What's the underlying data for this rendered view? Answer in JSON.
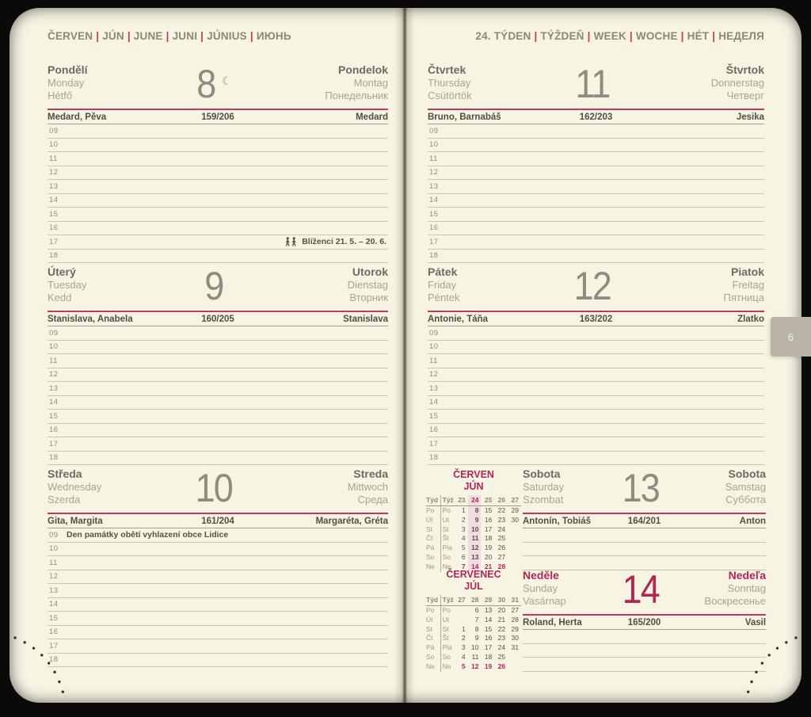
{
  "header": {
    "month_segments": [
      "ČERVEN",
      "JÚN",
      "JUNE",
      "JUNI",
      "JÚNIUS",
      "ИЮНЬ"
    ],
    "week_segments": [
      "24. TÝDEN",
      "TÝŽDEŇ",
      "WEEK",
      "WOCHE",
      "HÉT",
      "НЕДЕЛЯ"
    ]
  },
  "page_tab": "6",
  "days": [
    {
      "key": "monday",
      "names_left": [
        "Pondělí",
        "Monday",
        "Hétfő"
      ],
      "number": "8",
      "moon_symbol": "☾",
      "names_right": [
        "Pondelok",
        "Montag",
        "Понедельник"
      ],
      "nameday_left": "Medard, Pěva",
      "day_of_year": "159/206",
      "nameday_right": "Medard",
      "hours": [
        "09",
        "10",
        "11",
        "12",
        "13",
        "14",
        "15",
        "16",
        "17",
        "18"
      ],
      "notes": [
        {
          "row": "17",
          "text": "Blíženci 21. 5. – 20. 6.",
          "icon": "gemini",
          "align": "right"
        }
      ]
    },
    {
      "key": "tuesday",
      "names_left": [
        "Úterý",
        "Tuesday",
        "Kedd"
      ],
      "number": "9",
      "names_right": [
        "Utorok",
        "Dienstag",
        "Вторник"
      ],
      "nameday_left": "Stanislava, Anabela",
      "day_of_year": "160/205",
      "nameday_right": "Stanislava",
      "hours": [
        "09",
        "10",
        "11",
        "12",
        "13",
        "14",
        "15",
        "16",
        "17",
        "18"
      ]
    },
    {
      "key": "wednesday",
      "names_left": [
        "Středa",
        "Wednesday",
        "Szerda"
      ],
      "number": "10",
      "names_right": [
        "Streda",
        "Mittwoch",
        "Среда"
      ],
      "nameday_left": "Gita, Margita",
      "day_of_year": "161/204",
      "nameday_right": "Margaréta, Gréta",
      "hours": [
        "09",
        "10",
        "11",
        "12",
        "13",
        "14",
        "15",
        "16",
        "17",
        "18"
      ],
      "notes": [
        {
          "row": "09",
          "text": "Den památky obětí vyhlazení obce Lidice",
          "align": "left"
        }
      ]
    },
    {
      "key": "thursday",
      "names_left": [
        "Čtvrtek",
        "Thursday",
        "Csütörtök"
      ],
      "number": "11",
      "names_right": [
        "Štvrtok",
        "Donnerstag",
        "Четверг"
      ],
      "nameday_left": "Bruno, Barnabáš",
      "day_of_year": "162/203",
      "nameday_right": "Jesika",
      "hours": [
        "09",
        "10",
        "11",
        "12",
        "13",
        "14",
        "15",
        "16",
        "17",
        "18"
      ]
    },
    {
      "key": "friday",
      "names_left": [
        "Pátek",
        "Friday",
        "Péntek"
      ],
      "number": "12",
      "names_right": [
        "Piatok",
        "Freitag",
        "Пятница"
      ],
      "nameday_left": "Antonie, Táňa",
      "day_of_year": "163/202",
      "nameday_right": "Zlatko",
      "hours": [
        "09",
        "10",
        "11",
        "12",
        "13",
        "14",
        "15",
        "16",
        "17",
        "18"
      ]
    },
    {
      "key": "saturday",
      "names_left": [
        "Sobota",
        "Saturday",
        "Szombat"
      ],
      "number": "13",
      "names_right": [
        "Sobota",
        "Samstag",
        "Суббота"
      ],
      "nameday_left": "Antonín, Tobiáš",
      "day_of_year": "164/201",
      "nameday_right": "Anton",
      "blank_rows": 3
    },
    {
      "key": "sunday",
      "names_left": [
        "Neděle",
        "Sunday",
        "Vasárnap"
      ],
      "number": "14",
      "names_right": [
        "Nedeľa",
        "Sonntag",
        "Воскресенье"
      ],
      "nameday_left": "Roland, Herta",
      "day_of_year": "165/200",
      "nameday_right": "Vasil",
      "blank_rows": 3,
      "is_sunday": true
    }
  ],
  "mini_calendars": [
    {
      "title": "ČERVEN",
      "subtitle": "JÚN",
      "week_label_cz": "Týd",
      "week_label_sk": "Týž",
      "weeks": [
        "23",
        "24",
        "25",
        "26",
        "27"
      ],
      "highlight_week": "24",
      "rows": [
        {
          "cz": "Po",
          "sk": "Po",
          "values": [
            "1",
            "8",
            "15",
            "22",
            "29"
          ]
        },
        {
          "cz": "Út",
          "sk": "Ut",
          "values": [
            "2",
            "9",
            "16",
            "23",
            "30"
          ]
        },
        {
          "cz": "St",
          "sk": "St",
          "values": [
            "3",
            "10",
            "17",
            "24",
            ""
          ]
        },
        {
          "cz": "Čt",
          "sk": "Št",
          "values": [
            "4",
            "11",
            "18",
            "25",
            ""
          ]
        },
        {
          "cz": "Pá",
          "sk": "Pia",
          "values": [
            "5",
            "12",
            "19",
            "26",
            ""
          ]
        },
        {
          "cz": "So",
          "sk": "So",
          "values": [
            "6",
            "13",
            "20",
            "27",
            ""
          ]
        },
        {
          "cz": "Ne",
          "sk": "Ne",
          "values": [
            "7",
            "14",
            "21",
            "28",
            ""
          ],
          "is_sunday": true
        }
      ]
    },
    {
      "title": "ČERVENEC",
      "subtitle": "JÚL",
      "week_label_cz": "Týd",
      "week_label_sk": "Týž",
      "weeks": [
        "27",
        "28",
        "29",
        "30",
        "31"
      ],
      "rows": [
        {
          "cz": "Po",
          "sk": "Po",
          "values": [
            "",
            "6",
            "13",
            "20",
            "27"
          ]
        },
        {
          "cz": "Út",
          "sk": "Ut",
          "values": [
            "",
            "7",
            "14",
            "21",
            "28"
          ]
        },
        {
          "cz": "St",
          "sk": "St",
          "values": [
            "1",
            "8",
            "15",
            "22",
            "29"
          ]
        },
        {
          "cz": "Čt",
          "sk": "Št",
          "values": [
            "2",
            "9",
            "16",
            "23",
            "30"
          ]
        },
        {
          "cz": "Pá",
          "sk": "Pia",
          "values": [
            "3",
            "10",
            "17",
            "24",
            "31"
          ]
        },
        {
          "cz": "So",
          "sk": "So",
          "values": [
            "4",
            "11",
            "18",
            "25",
            ""
          ]
        },
        {
          "cz": "Ne",
          "sk": "Ne",
          "values": [
            "5",
            "12",
            "19",
            "26",
            ""
          ],
          "is_sunday": true
        }
      ]
    }
  ],
  "colors": {
    "accent_line": "#bd3a61",
    "crimson": "#b32653",
    "page": "#f8f4e4",
    "tab": "#b8b3a4"
  }
}
